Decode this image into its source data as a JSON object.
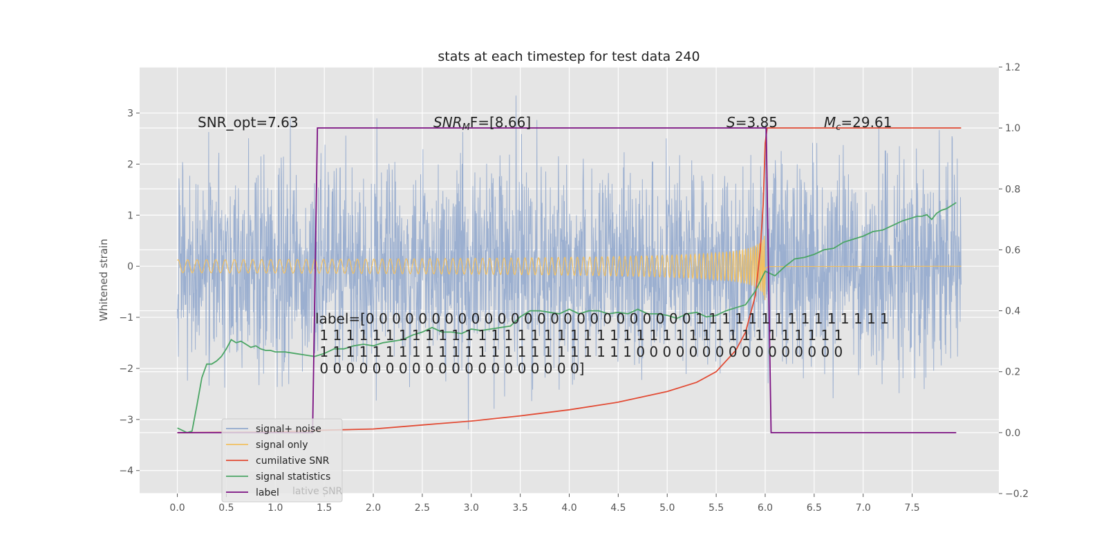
{
  "chart_data": {
    "type": "line",
    "title": "stats at each timestep for test data 240",
    "xlabel": "",
    "ylabel": "Whitened strain",
    "y2label": "",
    "xlim": [
      -0.385,
      8.385
    ],
    "ylim": [
      -4.45,
      3.9
    ],
    "y2lim": [
      -0.2,
      1.2
    ],
    "xticks": [
      0.0,
      0.5,
      1.0,
      1.5,
      2.0,
      2.5,
      3.0,
      3.5,
      4.0,
      4.5,
      5.0,
      5.5,
      6.0,
      6.5,
      7.0,
      7.5
    ],
    "xtick_labels": [
      "0.0",
      "0.5",
      "1.0",
      "1.5",
      "2.0",
      "2.5",
      "3.0",
      "3.5",
      "4.0",
      "4.5",
      "5.0",
      "5.5",
      "6.0",
      "6.5",
      "7.0",
      "7.5"
    ],
    "yticks": [
      -4,
      -3,
      -2,
      -1,
      0,
      1,
      2,
      3
    ],
    "ytick_labels": [
      "−4",
      "−3",
      "−2",
      "−1",
      "0",
      "1",
      "2",
      "3"
    ],
    "y2ticks": [
      -0.2,
      0.0,
      0.2,
      0.4,
      0.6,
      0.8,
      1.0,
      1.2
    ],
    "y2tick_labels": [
      "−0.2",
      "0.0",
      "0.2",
      "0.4",
      "0.6",
      "0.8",
      "1.0",
      "1.2"
    ],
    "grid": true,
    "legend_position": "lower-left",
    "legend": [
      {
        "name": "signal+ noise",
        "color": "#92a8cd"
      },
      {
        "name": "signal only",
        "color": "#f2c060"
      },
      {
        "name": "cumilative SNR",
        "color": "#e24a33"
      },
      {
        "name": "signal statistics",
        "color": "#4aa564"
      },
      {
        "name": "label",
        "color": "#7b0f82"
      }
    ],
    "legend_ghost_text": "lative SNR",
    "annotations": {
      "snr_opt": "SNR_opt=7.63",
      "snr_mf_symbol": "SNR",
      "snr_mf_sub": "M",
      "snr_mf_value": "F=[8.66]",
      "s_symbol": "S",
      "s_value": "=3.85",
      "mc_symbol": "M",
      "mc_sub": "c",
      "mc_value": "=29.61",
      "label_lines": [
        "label=[0 0 0 0 0 0 0 0 0 0 0 0 0 0 0 0 0 0 0 0 0 0 0 0 0 1 1 1 1 1 1 1 1 1 1 1 1 1 1 1",
        " 1 1 1 1 1 1 1 1 1 1 1 1 1 1 1 1 1 1 1 1 1 1 1 1 1 1 1 1 1 1 1 1 1 1 1 1 1 1 1 1",
        " 1 1 1 1 1 1 1 1 1 1 1 1 1 1 1 1 1 1 1 1 1 1 1 1 0 0 0 0 0 0 0 0 0 0 0 0 0 0 0 0",
        " 0 0 0 0 0 0 0 0 0 0 0 0 0 0 0 0 0 0 0 0]"
      ]
    },
    "series": [
      {
        "name": "signal+ noise",
        "axis": "left",
        "color": "#92a8cd",
        "description_stats": {
          "t_start": 0.0,
          "t_end": 8.0,
          "mean": 0.0,
          "std": 1.0,
          "min": -4.05,
          "max": 3.37
        }
      },
      {
        "name": "signal only",
        "axis": "left",
        "color": "#f2c060",
        "chirp": {
          "t_start": 0.0,
          "t_merger": 6.0,
          "peak_amplitude": 0.7
        }
      },
      {
        "name": "cumilative SNR",
        "axis": "right",
        "color": "#e24a33",
        "x": [
          0.0,
          1.0,
          1.5,
          2.0,
          2.5,
          3.0,
          3.5,
          4.0,
          4.5,
          5.0,
          5.3,
          5.5,
          5.7,
          5.8,
          5.9,
          5.95,
          5.98,
          6.0,
          6.02,
          8.0
        ],
        "y": [
          0.0,
          0.002,
          0.008,
          0.012,
          0.025,
          0.038,
          0.055,
          0.075,
          0.1,
          0.135,
          0.165,
          0.2,
          0.27,
          0.33,
          0.45,
          0.6,
          0.75,
          0.95,
          1.0,
          1.0
        ]
      },
      {
        "name": "signal statistics",
        "axis": "right",
        "color": "#4aa564",
        "x": [
          0.0,
          0.1,
          0.15,
          0.2,
          0.25,
          0.3,
          0.35,
          0.4,
          0.45,
          0.5,
          0.55,
          0.6,
          0.65,
          0.7,
          0.75,
          0.8,
          0.85,
          0.9,
          0.95,
          1.0,
          1.1,
          1.2,
          1.3,
          1.4,
          1.5,
          1.6,
          1.7,
          1.8,
          1.9,
          2.0,
          2.1,
          2.2,
          2.3,
          2.4,
          2.5,
          2.6,
          2.7,
          2.8,
          2.9,
          3.0,
          3.1,
          3.2,
          3.3,
          3.4,
          3.5,
          3.6,
          3.7,
          3.8,
          3.9,
          4.0,
          4.1,
          4.2,
          4.3,
          4.4,
          4.5,
          4.6,
          4.7,
          4.8,
          4.9,
          5.0,
          5.1,
          5.2,
          5.3,
          5.4,
          5.5,
          5.6,
          5.7,
          5.8,
          5.9,
          6.0,
          6.1,
          6.2,
          6.3,
          6.4,
          6.5,
          6.6,
          6.7,
          6.8,
          6.9,
          7.0,
          7.1,
          7.2,
          7.3,
          7.4,
          7.5,
          7.55,
          7.6,
          7.65,
          7.7,
          7.75,
          7.8,
          7.85,
          7.9,
          7.95
        ],
        "y": [
          0.015,
          0.0,
          0.005,
          0.09,
          0.18,
          0.225,
          0.225,
          0.235,
          0.25,
          0.275,
          0.305,
          0.295,
          0.3,
          0.29,
          0.28,
          0.285,
          0.275,
          0.27,
          0.27,
          0.265,
          0.265,
          0.26,
          0.255,
          0.25,
          0.26,
          0.275,
          0.275,
          0.285,
          0.29,
          0.285,
          0.295,
          0.3,
          0.305,
          0.32,
          0.33,
          0.345,
          0.33,
          0.33,
          0.325,
          0.34,
          0.335,
          0.34,
          0.345,
          0.35,
          0.38,
          0.4,
          0.4,
          0.395,
          0.39,
          0.405,
          0.39,
          0.4,
          0.4,
          0.39,
          0.395,
          0.39,
          0.405,
          0.39,
          0.39,
          0.385,
          0.375,
          0.39,
          0.395,
          0.38,
          0.385,
          0.4,
          0.41,
          0.42,
          0.465,
          0.53,
          0.515,
          0.545,
          0.57,
          0.575,
          0.585,
          0.6,
          0.605,
          0.625,
          0.635,
          0.645,
          0.66,
          0.665,
          0.68,
          0.695,
          0.705,
          0.71,
          0.71,
          0.715,
          0.7,
          0.72,
          0.73,
          0.735,
          0.745,
          0.755
        ]
      },
      {
        "name": "label",
        "axis": "right",
        "color": "#7b0f82",
        "x": [
          0.0,
          1.38,
          1.43,
          1.44,
          6.0,
          6.01,
          6.06,
          7.95
        ],
        "y": [
          0.0,
          0.0,
          1.0,
          1.0,
          1.0,
          1.0,
          0.0,
          0.0
        ]
      }
    ]
  }
}
